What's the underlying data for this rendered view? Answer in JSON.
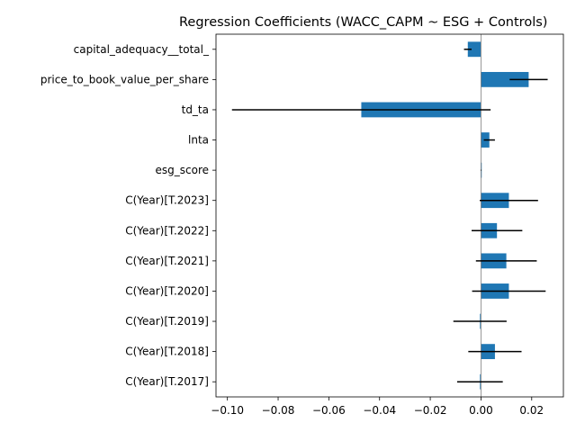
{
  "chart_data": {
    "type": "bar",
    "orientation": "horizontal",
    "title": "Regression Coefficients (WACC_CAPM ~ ESG + Controls)",
    "xlabel": "",
    "ylabel": "",
    "xlim": [
      -0.1045,
      0.0325
    ],
    "x_ticks": [
      -0.1,
      -0.08,
      -0.06,
      -0.04,
      -0.02,
      0.0,
      0.02
    ],
    "x_tick_labels": [
      "−0.10",
      "−0.08",
      "−0.06",
      "−0.04",
      "−0.02",
      "0.00",
      "0.02"
    ],
    "grid": false,
    "legend": "none",
    "bar_color": "#1f77b4",
    "errorbar_color": "#000000",
    "zero_line_color": "#808080",
    "categories": [
      "capital_adequacy__total_",
      "price_to_book_value_per_share",
      "td_ta",
      "lnta",
      "esg_score",
      "C(Year)[T.2023]",
      "C(Year)[T.2022]",
      "C(Year)[T.2021]",
      "C(Year)[T.2020]",
      "C(Year)[T.2019]",
      "C(Year)[T.2018]",
      "C(Year)[T.2017]"
    ],
    "values": [
      -0.0052,
      0.0188,
      -0.0472,
      0.0033,
      0.0001,
      0.011,
      0.0063,
      0.01,
      0.011,
      -0.0004,
      0.0055,
      -0.0004
    ],
    "error": [
      0.0015,
      0.0075,
      0.051,
      0.0022,
      0.0001,
      0.0115,
      0.01,
      0.012,
      0.0145,
      0.0105,
      0.0105,
      0.009
    ]
  }
}
